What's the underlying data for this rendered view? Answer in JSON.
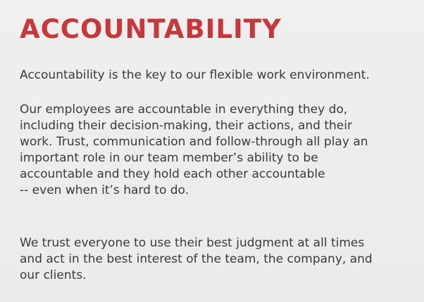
{
  "slide": {
    "title": "ACCOUNTABILITY",
    "paragraph1": [
      "Accountability is the key to our flexible work environment."
    ],
    "paragraph2": [
      "Our employees are accountable in everything they do,",
      "including their decision-making, their actions, and their",
      "work. Trust, communication and follow-through all play an",
      "important role in our team member’s ability to be",
      "accountable and they hold each other accountable",
      "-- even when it’s hard to do."
    ],
    "paragraph3": [
      "We trust everyone to use their best judgment at all times",
      "and act in the best interest of the team, the company, and",
      "our clients."
    ],
    "colors": {
      "title": "#c9373a",
      "body_text": "#3a3a3a",
      "background": "#ededed"
    }
  }
}
